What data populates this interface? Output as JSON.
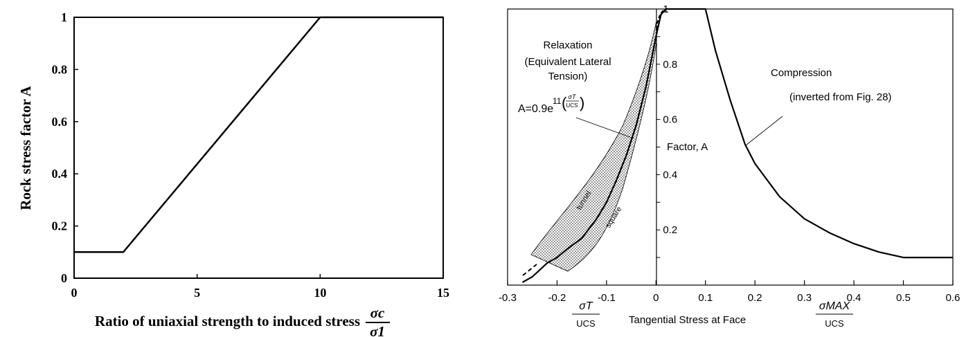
{
  "chart_data": [
    {
      "type": "line",
      "xlabel": "Ratio of uniaxial strength to induced stress",
      "xlabel_fraction": {
        "numerator": "σc",
        "denominator": "σ1"
      },
      "ylabel": "Rock stress factor A",
      "xlim": [
        0,
        15
      ],
      "ylim": [
        0,
        1
      ],
      "x_ticks": [
        "0",
        "5",
        "10",
        "15"
      ],
      "y_ticks": [
        "0",
        "0.2",
        "0.4",
        "0.6",
        "0.8",
        "1"
      ],
      "grid": false,
      "series": [
        {
          "x": [
            0,
            2,
            10,
            15
          ],
          "y": [
            0.1,
            0.1,
            1.0,
            1.0
          ]
        }
      ]
    },
    {
      "type": "line",
      "xlabel": "Tangential Stress at Face",
      "x_left_fraction": {
        "numerator": "σT",
        "denominator": "UCS"
      },
      "x_right_fraction": {
        "numerator": "σMAX",
        "denominator": "UCS"
      },
      "ylabel": "Factor, A",
      "xlim": [
        -0.3,
        0.6
      ],
      "ylim": [
        0,
        1
      ],
      "x_ticks": [
        "-0.3",
        "-0.2",
        "-0.1",
        "0",
        "0.1",
        "0.2",
        "0.3",
        "0.4",
        "0.5",
        "0.6"
      ],
      "y_ticks": [
        "0.2",
        "0.4",
        "0.6",
        "0.8",
        "1"
      ],
      "grid": false,
      "annotations": {
        "relaxation_1": "Relaxation",
        "relaxation_2": "(Equivalent Lateral",
        "relaxation_3": "Tension)",
        "formula_base": "A=0.9e",
        "formula_exp": "11",
        "formula_num": "σT",
        "formula_den": "UCS",
        "compression_1": "Compression",
        "compression_2": "(inverted from Fig. 28)",
        "band_upper": "tunnel",
        "band_lower": "square"
      },
      "series": [
        {
          "x": [
            -0.27,
            -0.25,
            -0.22,
            -0.2,
            -0.18,
            -0.15,
            -0.12,
            -0.1,
            -0.08,
            -0.06,
            -0.04,
            -0.02,
            0
          ],
          "y": [
            0.01,
            0.03,
            0.08,
            0.1,
            0.13,
            0.17,
            0.24,
            0.3,
            0.38,
            0.47,
            0.58,
            0.72,
            0.9
          ]
        },
        {
          "x": [
            0,
            0.01,
            0.02,
            0.05,
            0.1,
            0.12,
            0.15,
            0.18,
            0.2,
            0.25,
            0.3,
            0.35,
            0.4,
            0.45,
            0.5,
            0.6
          ],
          "y": [
            0.9,
            0.98,
            1.0,
            1.0,
            1.0,
            0.85,
            0.67,
            0.51,
            0.44,
            0.32,
            0.24,
            0.19,
            0.15,
            0.12,
            0.1,
            0.1
          ]
        }
      ]
    }
  ]
}
